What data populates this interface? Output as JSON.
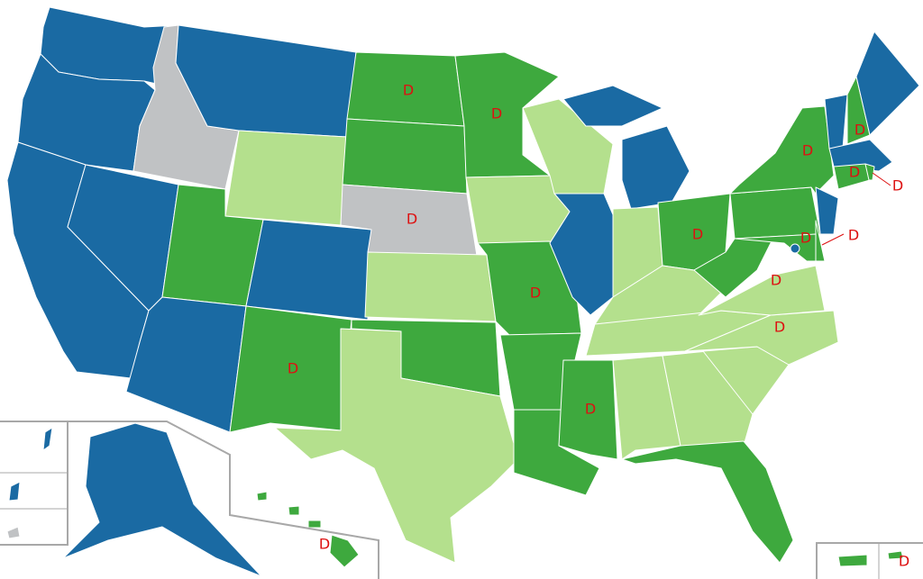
{
  "map": {
    "palette": [
      "#1a6aa3",
      "#3ea93e",
      "#b4e08d",
      "#c0c2c4"
    ],
    "label_color": "#dd1111",
    "labels": [
      "D",
      "D",
      "D",
      "D",
      "D",
      "D",
      "D",
      "D",
      "D",
      "D",
      "D",
      "D",
      "D",
      "D",
      "D",
      "D",
      "D"
    ]
  }
}
